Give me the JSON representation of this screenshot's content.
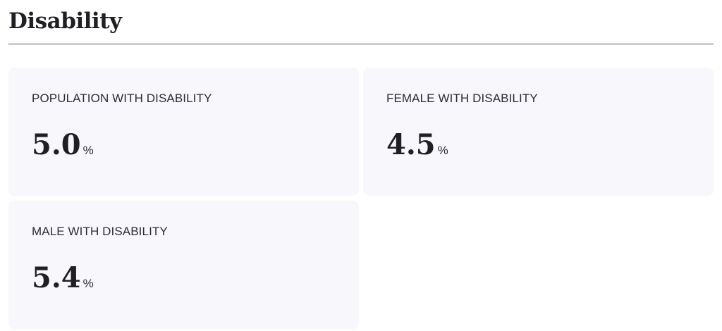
{
  "header": {
    "title": "Disability"
  },
  "cards": [
    {
      "label": "POPULATION WITH DISABILITY",
      "value": "5.0",
      "unit": "%"
    },
    {
      "label": "FEMALE WITH DISABILITY",
      "value": "4.5",
      "unit": "%"
    },
    {
      "label": "MALE WITH DISABILITY",
      "value": "5.4",
      "unit": "%"
    }
  ]
}
